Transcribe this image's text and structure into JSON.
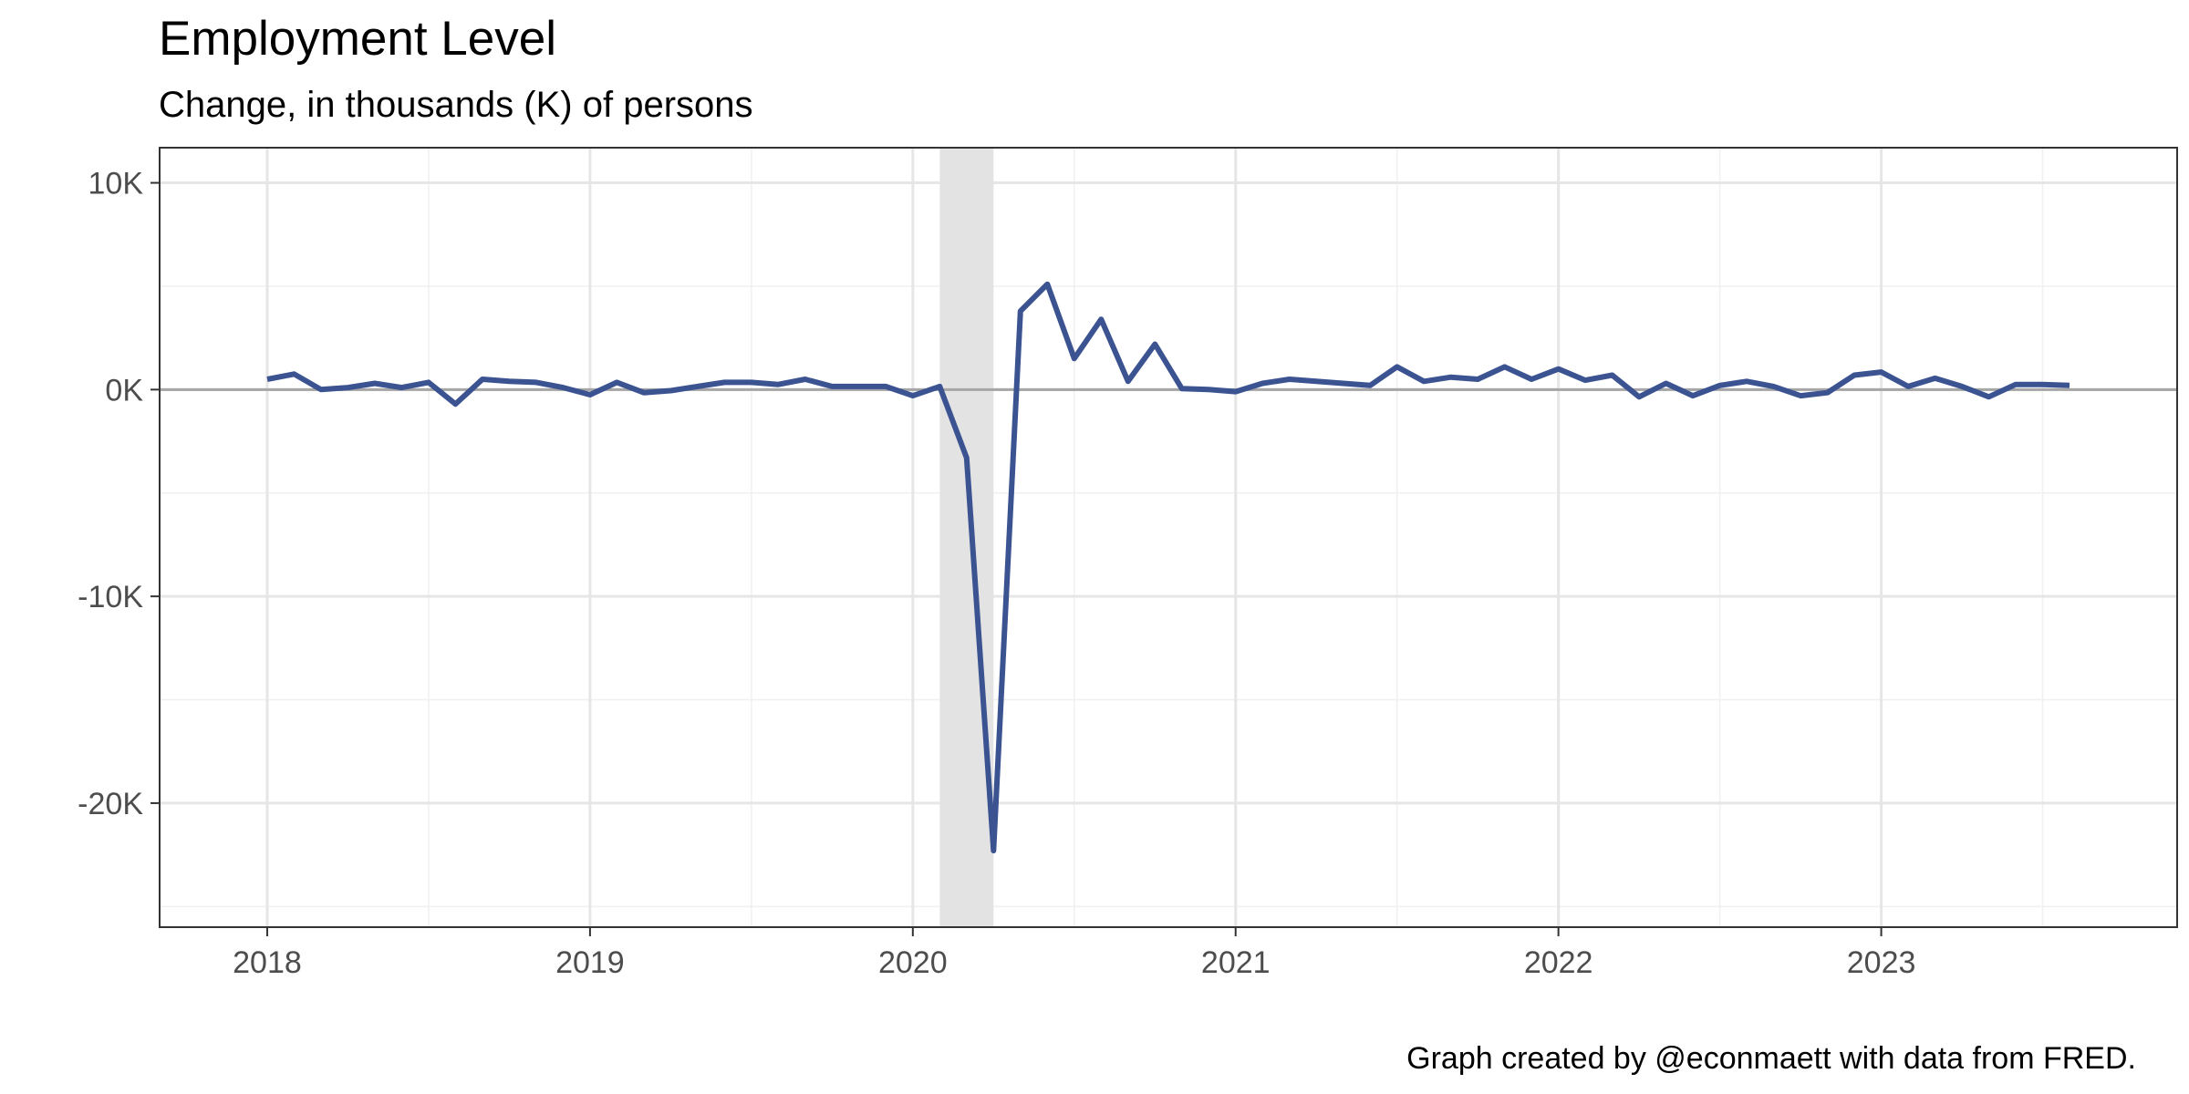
{
  "chart_data": {
    "type": "line",
    "title": "Employment Level",
    "subtitle": "Change, in thousands (K) of persons",
    "caption": "Graph created by @econmaett with data from FRED.",
    "xlabel": "",
    "ylabel": "",
    "x_ticks": [
      {
        "year": 2018,
        "label": "2018"
      },
      {
        "year": 2019,
        "label": "2019"
      },
      {
        "year": 2020,
        "label": "2020"
      },
      {
        "year": 2021,
        "label": "2021"
      },
      {
        "year": 2022,
        "label": "2022"
      },
      {
        "year": 2023,
        "label": "2023"
      }
    ],
    "y_ticks": [
      {
        "value": 10000,
        "label": "10K"
      },
      {
        "value": 0,
        "label": "0K"
      },
      {
        "value": -10000,
        "label": "-10K"
      },
      {
        "value": -20000,
        "label": "-20K"
      }
    ],
    "xlim": [
      "2017-09",
      "2023-12"
    ],
    "ylim": [
      -26000,
      11700
    ],
    "grid": true,
    "zero_line": true,
    "recession_shading": {
      "start": "2020-02",
      "end": "2020-04"
    },
    "line_color": "#3b5391",
    "recession_color": "#e3e3e3",
    "series": [
      {
        "x": [
          "2018-01",
          "2018-02",
          "2018-03",
          "2018-04",
          "2018-05",
          "2018-06",
          "2018-07",
          "2018-08",
          "2018-09",
          "2018-10",
          "2018-11",
          "2018-12",
          "2019-01",
          "2019-02",
          "2019-03",
          "2019-04",
          "2019-05",
          "2019-06",
          "2019-07",
          "2019-08",
          "2019-09",
          "2019-10",
          "2019-11",
          "2019-12",
          "2020-01",
          "2020-02",
          "2020-03",
          "2020-04",
          "2020-05",
          "2020-06",
          "2020-07",
          "2020-08",
          "2020-09",
          "2020-10",
          "2020-11",
          "2020-12",
          "2021-01",
          "2021-02",
          "2021-03",
          "2021-04",
          "2021-05",
          "2021-06",
          "2021-07",
          "2021-08",
          "2021-09",
          "2021-10",
          "2021-11",
          "2021-12",
          "2022-01",
          "2022-02",
          "2022-03",
          "2022-04",
          "2022-05",
          "2022-06",
          "2022-07",
          "2022-08",
          "2022-09",
          "2022-10",
          "2022-11",
          "2022-12",
          "2023-01",
          "2023-02",
          "2023-03",
          "2023-04",
          "2023-05",
          "2023-06",
          "2023-07",
          "2023-08"
        ],
        "values": [
          500,
          750,
          0,
          100,
          300,
          100,
          350,
          -700,
          500,
          400,
          350,
          100,
          -250,
          350,
          -150,
          -50,
          150,
          350,
          350,
          250,
          500,
          150,
          150,
          150,
          -300,
          150,
          -3300,
          -22300,
          3800,
          5100,
          1500,
          3400,
          400,
          2200,
          50,
          0,
          -100,
          300,
          500,
          400,
          300,
          200,
          1100,
          400,
          600,
          500,
          1100,
          500,
          1000,
          450,
          700,
          -350,
          300,
          -300,
          200,
          400,
          150,
          -300,
          -150,
          700,
          850,
          150,
          550,
          150,
          -350,
          250,
          250,
          200
        ]
      }
    ]
  }
}
